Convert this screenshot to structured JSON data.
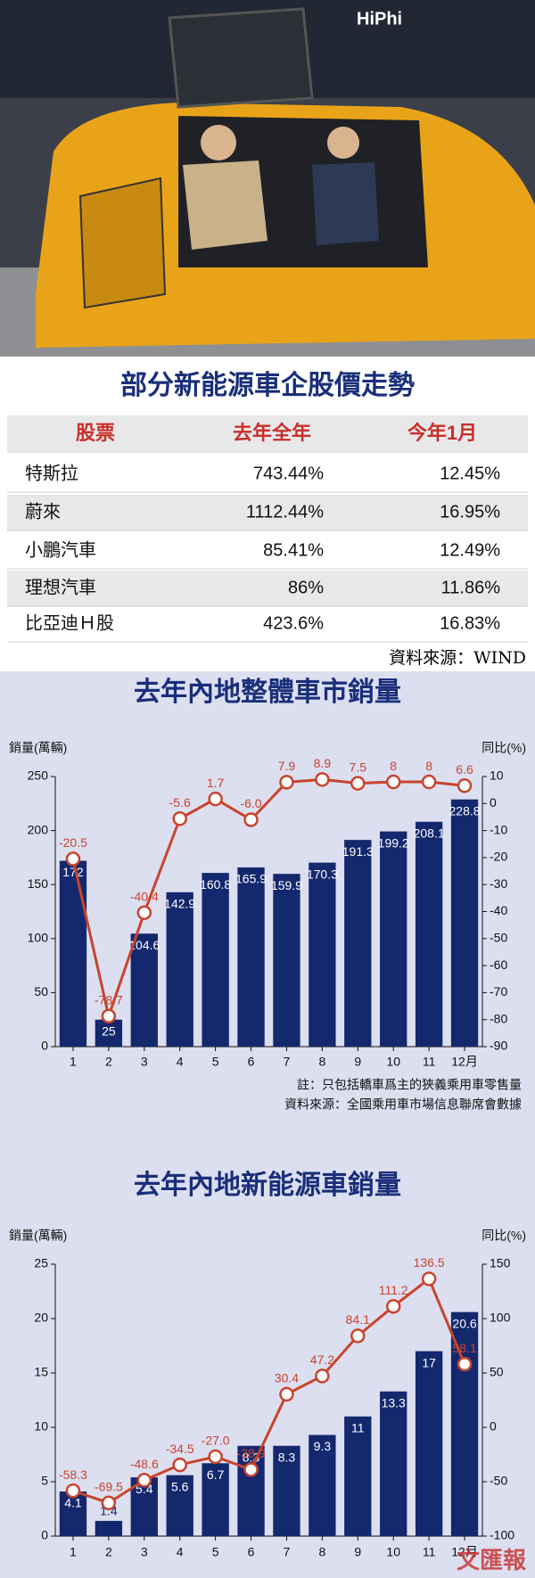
{
  "photo": {
    "sign": "HiPhi"
  },
  "table": {
    "title": "部分新能源車企股價走勢",
    "columns": [
      "股票",
      "去年全年",
      "今年1月"
    ],
    "rows": [
      [
        "特斯拉",
        "743.44%",
        "12.45%"
      ],
      [
        "蔚來",
        "1112.44%",
        "16.95%"
      ],
      [
        "小鵬汽車",
        "85.41%",
        "12.49%"
      ],
      [
        "理想汽車",
        "86%",
        "11.86%"
      ],
      [
        "比亞迪Ｈ股",
        "423.6%",
        "16.83%"
      ]
    ],
    "source": "資料來源：WIND"
  },
  "chart_data": [
    {
      "type": "combo",
      "title": "去年內地整體車市銷量",
      "y_label": "銷量(萬輛)",
      "y2_label": "同比(%)",
      "categories": [
        "1",
        "2",
        "3",
        "4",
        "5",
        "6",
        "7",
        "8",
        "9",
        "10",
        "11",
        "12月"
      ],
      "series": [
        {
          "type": "bar",
          "color": "#14286e",
          "values": [
            172,
            25,
            104.6,
            142.9,
            160.8,
            165.9,
            159.9,
            170.3,
            191.3,
            199.2,
            208.1,
            228.8
          ]
        },
        {
          "type": "line",
          "axis": "y2",
          "color": "#c8442c",
          "values": [
            -20.5,
            -78.7,
            -40.4,
            -5.6,
            1.7,
            -6.0,
            7.9,
            8.9,
            7.5,
            8,
            8,
            6.6
          ],
          "value_labels": [
            "-20.5",
            "-78.7",
            "-40.4",
            "-5.6",
            "1.7",
            "-6.0",
            "7.9",
            "8.9",
            "7.5",
            "8",
            "8",
            "6.6"
          ]
        }
      ],
      "ylim": [
        0,
        250
      ],
      "yticks": [
        0,
        50,
        100,
        150,
        200,
        250
      ],
      "y2lim": [
        -90,
        10
      ],
      "y2ticks": [
        -90,
        -80,
        -70,
        -60,
        -50,
        -40,
        -30,
        -20,
        -10,
        0,
        10
      ],
      "notes": [
        "註：只包括轎車爲主的狹義乘用車零售量",
        "資料來源：全國乘用車市場信息聯席會數據"
      ]
    },
    {
      "type": "combo",
      "title": "去年內地新能源車銷量",
      "y_label": "銷量(萬輛)",
      "y2_label": "同比(%)",
      "categories": [
        "1",
        "2",
        "3",
        "4",
        "5",
        "6",
        "7",
        "8",
        "9",
        "10",
        "11",
        "12月"
      ],
      "series": [
        {
          "type": "bar",
          "color": "#14286e",
          "values": [
            4.1,
            1.4,
            5.4,
            5.6,
            6.7,
            8.3,
            8.3,
            9.3,
            11,
            13.3,
            17,
            20.6
          ]
        },
        {
          "type": "line",
          "axis": "y2",
          "color": "#c8442c",
          "values": [
            -58.3,
            -69.5,
            -48.6,
            -34.5,
            -27.0,
            -38.9,
            30.4,
            47.2,
            84.1,
            111.2,
            136.5,
            58.1
          ],
          "value_labels": [
            "-58.3",
            "-69.5",
            "-48.6",
            "-34.5",
            "-27.0",
            "-38.9",
            "30.4",
            "47.2",
            "84.1",
            "111.2",
            "136.5",
            "58.1"
          ]
        }
      ],
      "ylim": [
        0,
        25
      ],
      "yticks": [
        0,
        5,
        10,
        15,
        20,
        25
      ],
      "y2lim": [
        -100,
        150
      ],
      "y2ticks": [
        -100,
        -50,
        0,
        50,
        100,
        150
      ]
    }
  ],
  "watermark": "文匯報"
}
